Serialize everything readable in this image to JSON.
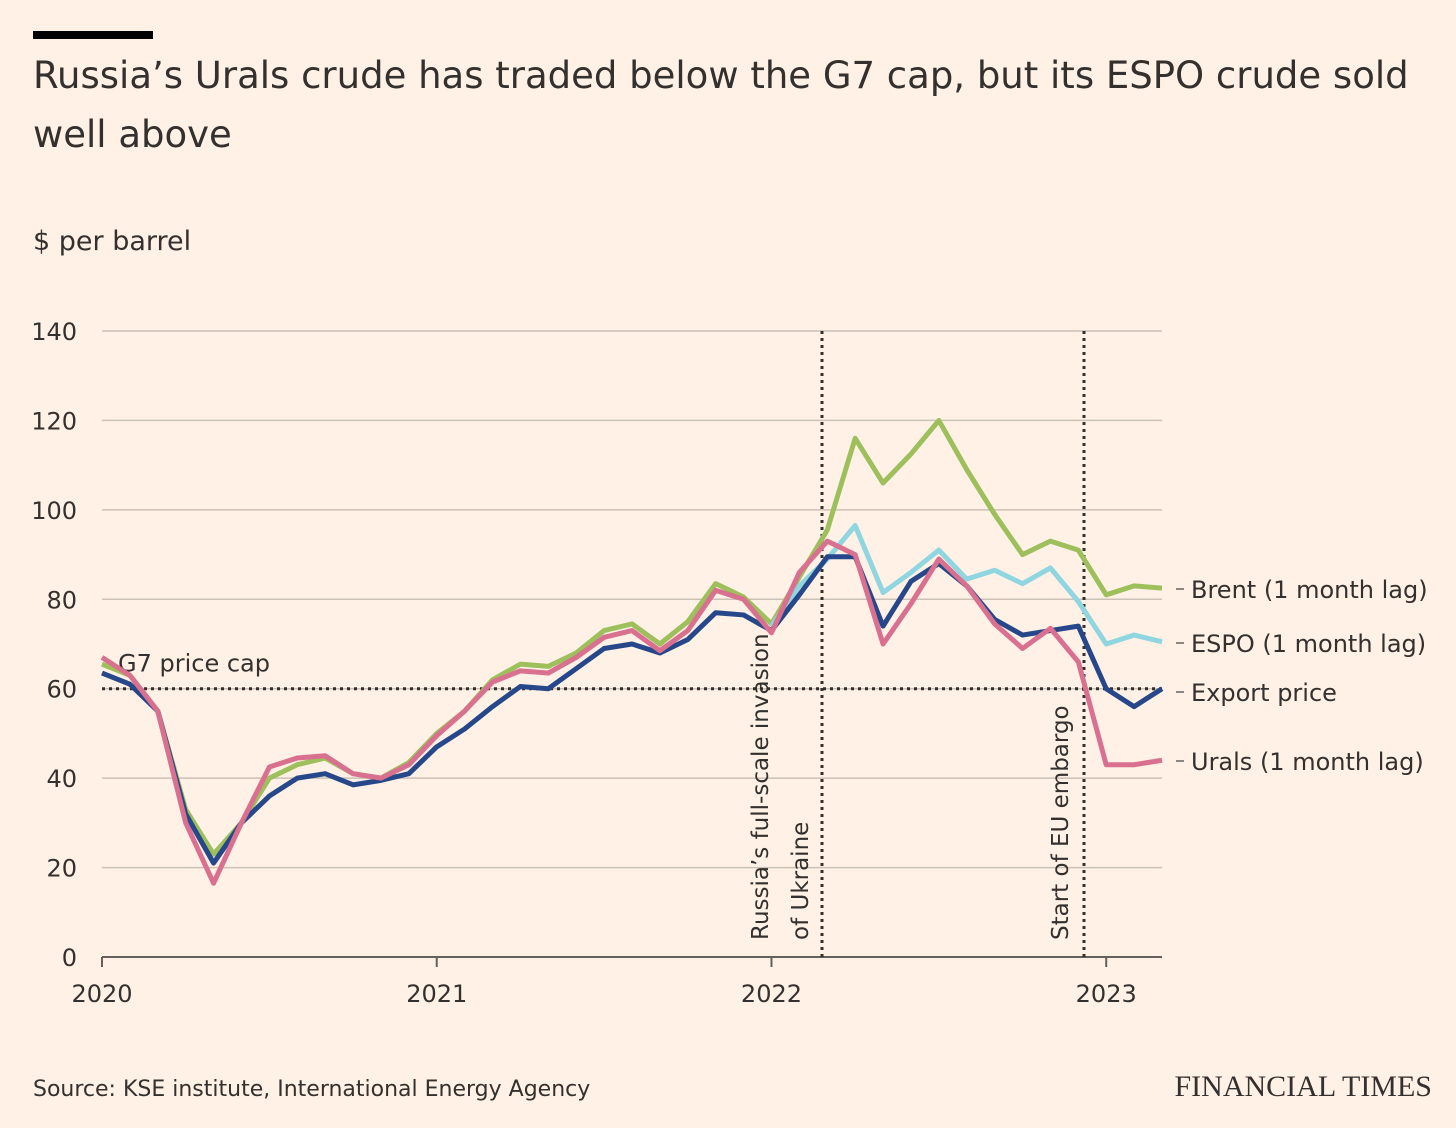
{
  "chart_data": {
    "type": "line",
    "title": "Russia’s Urals crude has traded below the G7 cap, but its ESPO crude sold well above",
    "subtitle": "$ per barrel",
    "source": "Source: KSE institute, International Energy Agency",
    "brand": "FINANCIAL TIMES",
    "x": [
      "2020-01",
      "2020-02",
      "2020-03",
      "2020-04",
      "2020-05",
      "2020-06",
      "2020-07",
      "2020-08",
      "2020-09",
      "2020-10",
      "2020-11",
      "2020-12",
      "2021-01",
      "2021-02",
      "2021-03",
      "2021-04",
      "2021-05",
      "2021-06",
      "2021-07",
      "2021-08",
      "2021-09",
      "2021-10",
      "2021-11",
      "2021-12",
      "2022-01",
      "2022-02",
      "2022-03",
      "2022-04",
      "2022-05",
      "2022-06",
      "2022-07",
      "2022-08",
      "2022-09",
      "2022-10",
      "2022-11",
      "2022-12",
      "2023-01",
      "2023-02",
      "2023-03"
    ],
    "xlim": [
      "2020-01",
      "2023-03"
    ],
    "xticks": [
      {
        "value": "2020-01",
        "label": "2020"
      },
      {
        "value": "2021-01",
        "label": "2021"
      },
      {
        "value": "2022-01",
        "label": "2022"
      },
      {
        "value": "2023-01",
        "label": "2023"
      }
    ],
    "ylim": [
      0,
      140
    ],
    "yticks": [
      0,
      20,
      40,
      60,
      80,
      100,
      120,
      140
    ],
    "grid": true,
    "series": [
      {
        "name": "Brent (1 month lag)",
        "color": "#9dbf5c",
        "values": [
          65.5,
          63,
          55,
          33,
          23,
          30,
          40,
          43,
          44.5,
          41,
          40,
          43.5,
          50,
          55,
          62,
          65.5,
          65,
          68,
          73,
          74.5,
          70,
          75,
          83.5,
          80.5,
          74.5,
          85,
          95.5,
          116,
          106,
          112.5,
          120,
          109,
          99,
          90,
          93,
          91,
          81,
          83,
          82.5
        ]
      },
      {
        "name": "ESPO (1 month lag)",
        "color": "#8fd6e1",
        "values": [
          null,
          null,
          null,
          null,
          null,
          null,
          null,
          null,
          null,
          null,
          null,
          null,
          null,
          null,
          null,
          null,
          null,
          null,
          null,
          null,
          null,
          null,
          null,
          null,
          74,
          83,
          89,
          96.5,
          81.5,
          86,
          91,
          84.5,
          86.5,
          83.5,
          87,
          79.5,
          70,
          72,
          70.5
        ]
      },
      {
        "name": "Export price",
        "color": "#26488a",
        "values": [
          63.5,
          61,
          55,
          32,
          21,
          30,
          36,
          40,
          41,
          38.5,
          39.5,
          41,
          47,
          51,
          56,
          60.5,
          60,
          64.5,
          69,
          70,
          68,
          71,
          77,
          76.5,
          73,
          81,
          89.5,
          89.5,
          74,
          84,
          88,
          83,
          75.5,
          72,
          73,
          74,
          60,
          56,
          60
        ]
      },
      {
        "name": "Urals (1 month lag)",
        "color": "#d9708f",
        "values": [
          67,
          63,
          55,
          30,
          16.5,
          30,
          42.5,
          44.5,
          45,
          41,
          40,
          43,
          49.5,
          55,
          61.5,
          64,
          63.5,
          67,
          71.5,
          73,
          68.5,
          73,
          82,
          80,
          72.5,
          86,
          93,
          90,
          70,
          79,
          89,
          83,
          74.5,
          69,
          73.5,
          66,
          43,
          43,
          44
        ]
      }
    ],
    "reference_lines": [
      {
        "label": "G7 price cap",
        "value": 60
      }
    ],
    "annotations": [
      {
        "text": [
          "Russia’s full-scale invasion",
          "of Ukraine"
        ]
      },
      {
        "text": [
          "Start of EU embargo"
        ]
      }
    ]
  }
}
